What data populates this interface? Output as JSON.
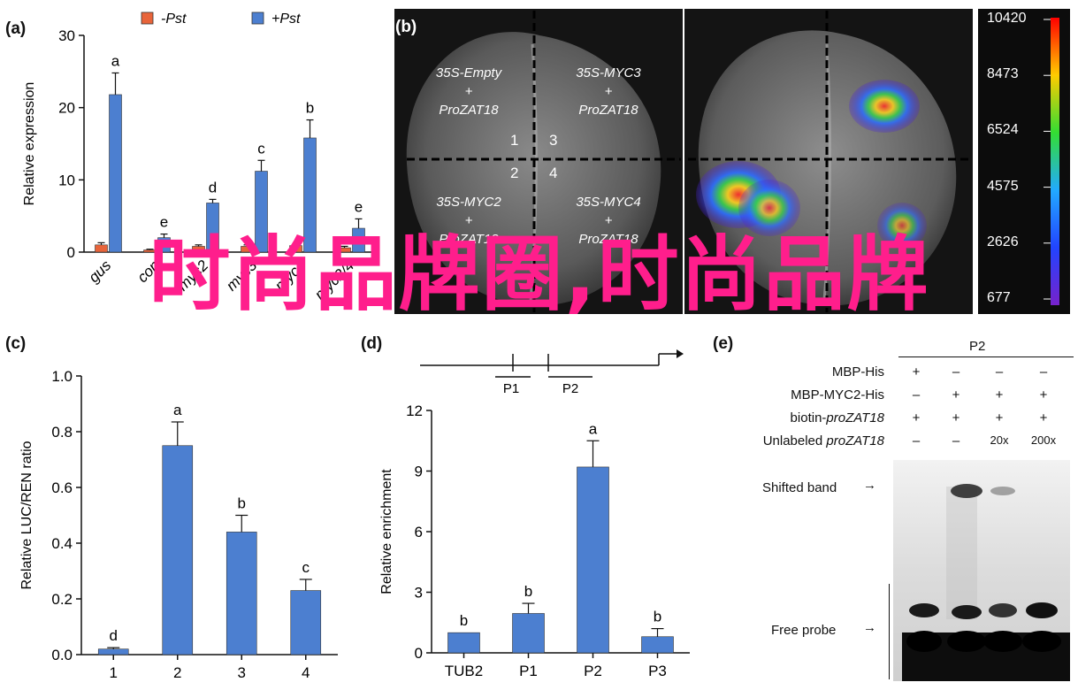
{
  "watermark": {
    "text": "时尚品牌圈,时尚品牌",
    "color": "#ff1e8c"
  },
  "colors": {
    "minus_pst": "#e8643a",
    "plus_pst": "#4c7fd0",
    "bar": "#4c7fd0"
  },
  "panel_a": {
    "label": "(a)",
    "legend": [
      {
        "name": "-Pst",
        "color": "#e8643a"
      },
      {
        "name": "+Pst",
        "color": "#4c7fd0"
      }
    ],
    "chart_data": {
      "type": "bar",
      "ylabel": "Relative expression",
      "ylim": [
        0,
        30
      ],
      "yticks": [
        0,
        10,
        20,
        30
      ],
      "categories": [
        "gus",
        "con",
        "myc2",
        "myc3",
        "myc4",
        "myc2/4"
      ],
      "category_labels_visible": [
        "gus",
        "con",
        "myc2",
        "myc3",
        "myc4",
        "myc2/4"
      ],
      "series": [
        {
          "name": "-Pst",
          "values": [
            1.0,
            0.3,
            0.8,
            0.8,
            0.9,
            0.6
          ],
          "errors": [
            0.3,
            0.1,
            0.2,
            0.2,
            0.3,
            0.2
          ]
        },
        {
          "name": "+Pst",
          "values": [
            21.8,
            2.0,
            6.8,
            11.2,
            15.8,
            3.3
          ],
          "errors": [
            3.0,
            0.5,
            0.5,
            1.5,
            2.5,
            1.3
          ]
        }
      ],
      "letters": [
        "a",
        "e",
        "d",
        "c",
        "b",
        "e"
      ]
    }
  },
  "panel_b": {
    "label": "(b)",
    "quadrants": [
      {
        "line1": "35S-Empty",
        "line2": "+",
        "line3": "ProZAT18"
      },
      {
        "line1": "35S-MYC3",
        "line2": "+",
        "line3": "ProZAT18"
      },
      {
        "line1": "35S-MYC2",
        "line2": "+",
        "line3": "ProZAT18"
      },
      {
        "line1": "35S-MYC4",
        "line2": "+",
        "line3": "ProZAT18"
      }
    ],
    "numbers": [
      "1",
      "3",
      "2",
      "4"
    ],
    "scale_values": [
      "10420",
      "8473",
      "6524",
      "4575",
      "2626",
      "677"
    ]
  },
  "panel_c": {
    "label": "(c)",
    "chart_data": {
      "type": "bar",
      "ylabel": "Relative LUC/REN ratio",
      "ylim": [
        0,
        1.0
      ],
      "yticks": [
        "0.0",
        "0.2",
        "0.4",
        "0.6",
        "0.8",
        "1.0"
      ],
      "categories": [
        "1",
        "2",
        "3",
        "4"
      ],
      "values": [
        0.02,
        0.75,
        0.44,
        0.23
      ],
      "errors": [
        0.005,
        0.085,
        0.06,
        0.04
      ],
      "letters": [
        "d",
        "a",
        "b",
        "c"
      ]
    }
  },
  "panel_d": {
    "label": "(d)",
    "region_labels": [
      "P1",
      "P2"
    ],
    "chart_data": {
      "type": "bar",
      "ylabel": "Relative enrichment",
      "ylim": [
        0,
        12
      ],
      "yticks": [
        "0",
        "3",
        "6",
        "9",
        "12"
      ],
      "categories": [
        "TUB2",
        "P1",
        "P2",
        "P3"
      ],
      "values": [
        1.0,
        1.95,
        9.2,
        0.8
      ],
      "errors": [
        0.0,
        0.5,
        1.3,
        0.4
      ],
      "letters": [
        "b",
        "b",
        "a",
        "b"
      ]
    }
  },
  "panel_e": {
    "label": "(e)",
    "probe": "P2",
    "rows": [
      {
        "label": "MBP-His",
        "cells": [
          "+",
          "–",
          "–",
          "–"
        ]
      },
      {
        "label": "MBP-MYC2-His",
        "cells": [
          "–",
          "+",
          "+",
          "+"
        ]
      },
      {
        "label_prefix": "biotin-",
        "label_italic": "proZAT18",
        "cells": [
          "+",
          "+",
          "+",
          "+"
        ]
      },
      {
        "label_prefix": "Unlabeled ",
        "label_italic": "proZAT18",
        "cells": [
          "–",
          "–",
          "20x",
          "200x"
        ]
      }
    ],
    "shifted_band": "Shifted band",
    "free_probe": "Free probe"
  }
}
